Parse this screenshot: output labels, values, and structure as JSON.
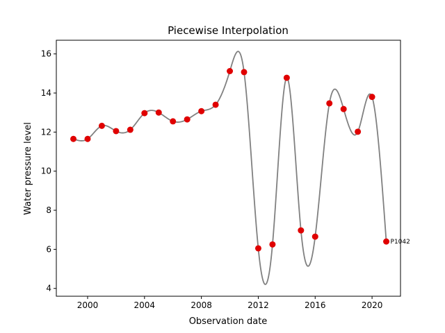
{
  "chart_data": {
    "type": "line",
    "title": "Piecewise Interpolation",
    "xlabel": "Observation date",
    "ylabel": "Water pressure level",
    "xlim": [
      1997.8,
      2022.0
    ],
    "ylim": [
      3.6,
      16.7
    ],
    "xticks": [
      2000,
      2004,
      2008,
      2012,
      2016,
      2020
    ],
    "yticks": [
      4,
      6,
      8,
      10,
      12,
      14,
      16
    ],
    "grid": false,
    "line_color": "#808080",
    "marker_color": "#e00000",
    "series": [
      {
        "x": [
          1999,
          2000,
          2001,
          2002,
          2003,
          2004,
          2005,
          2006,
          2007,
          2008,
          2009,
          2010,
          2011,
          2012,
          2013,
          2014,
          2015,
          2016,
          2017,
          2018,
          2019,
          2020,
          2021
        ],
        "values": [
          11.65,
          11.65,
          12.32,
          12.05,
          12.12,
          12.97,
          13.0,
          12.55,
          12.65,
          13.07,
          13.4,
          15.12,
          15.07,
          6.05,
          6.25,
          14.78,
          6.97,
          6.65,
          13.47,
          13.18,
          12.02,
          13.8,
          6.4
        ]
      }
    ],
    "annotations": [
      {
        "text": "P1042",
        "x": 2021,
        "y": 6.4
      }
    ]
  }
}
